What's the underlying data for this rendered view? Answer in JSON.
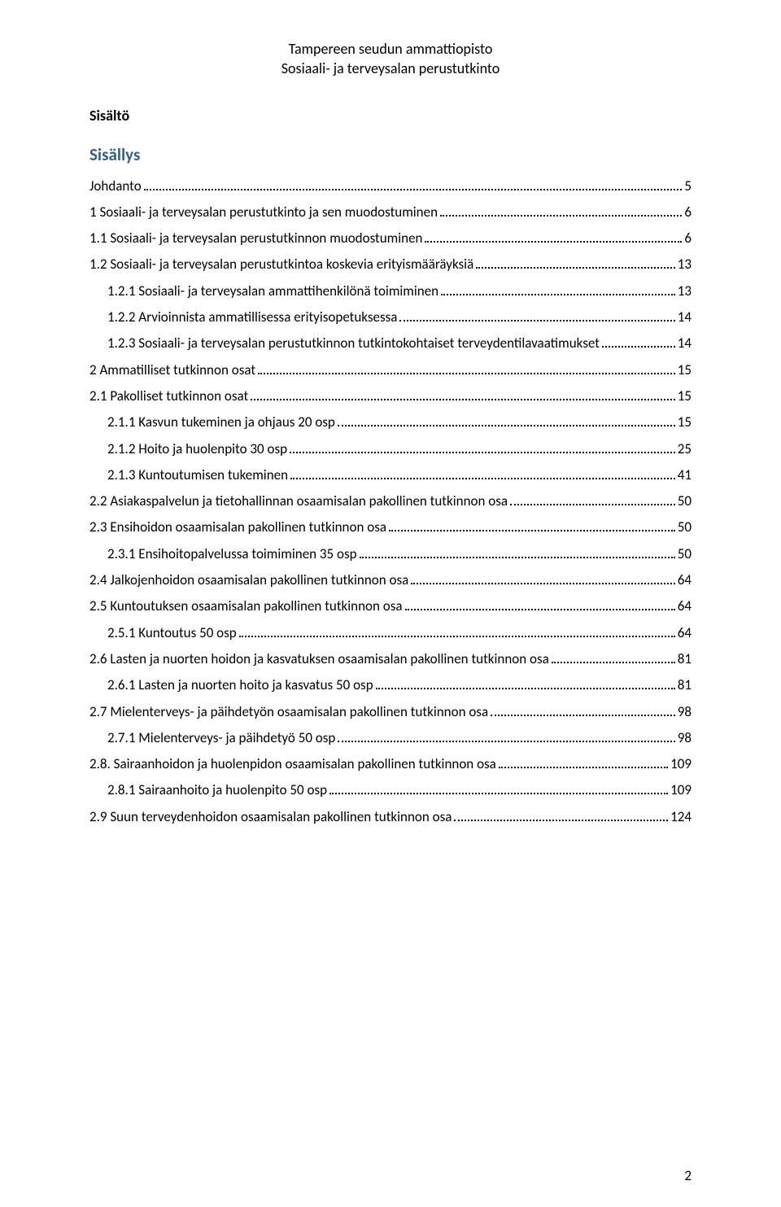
{
  "header": {
    "line1": "Tampereen seudun ammattiopisto",
    "line2": "Sosiaali- ja terveysalan perustutkinto"
  },
  "labels": {
    "sisalto": "Sisältö",
    "sisallys": "Sisällys"
  },
  "toc": [
    {
      "label": "Johdanto",
      "page": "5",
      "indent": 0
    },
    {
      "label": "1 Sosiaali- ja terveysalan perustutkinto ja sen muodostuminen",
      "page": "6",
      "indent": 0
    },
    {
      "label": "1.1    Sosiaali- ja terveysalan perustutkinnon muodostuminen",
      "page": "6",
      "indent": 0
    },
    {
      "label": "1.2    Sosiaali- ja terveysalan perustutkintoa koskevia erityismääräyksiä",
      "page": "13",
      "indent": 0
    },
    {
      "label": "1.2.1     Sosiaali- ja terveysalan ammattihenkilönä toimiminen",
      "page": "13",
      "indent": 1
    },
    {
      "label": "1.2.2     Arvioinnista ammatillisessa erityisopetuksessa",
      "page": "14",
      "indent": 1
    },
    {
      "label": "1.2.3 Sosiaali- ja terveysalan perustutkinnon tutkintokohtaiset terveydentilavaatimukset",
      "page": "14",
      "indent": 1
    },
    {
      "label": "2 Ammatilliset tutkinnon osat",
      "page": "15",
      "indent": 0
    },
    {
      "label": "2.1 Pakolliset tutkinnon osat",
      "page": "15",
      "indent": 0
    },
    {
      "label": "2.1.1 Kasvun tukeminen ja ohjaus 20 osp",
      "page": "15",
      "indent": 1
    },
    {
      "label": "2.1.2 Hoito ja huolenpito 30 osp",
      "page": "25",
      "indent": 1
    },
    {
      "label": "2.1.3 Kuntoutumisen tukeminen",
      "page": "41",
      "indent": 1
    },
    {
      "label": "2.2 Asiakaspalvelun ja tietohallinnan osaamisalan pakollinen tutkinnon osa",
      "page": "50",
      "indent": 0
    },
    {
      "label": "2.3 Ensihoidon osaamisalan pakollinen tutkinnon osa",
      "page": "50",
      "indent": 0
    },
    {
      "label": "2.3.1 Ensihoitopalvelussa toimiminen 35 osp",
      "page": "50",
      "indent": 1
    },
    {
      "label": "2.4 Jalkojenhoidon osaamisalan pakollinen tutkinnon osa",
      "page": "64",
      "indent": 0
    },
    {
      "label": "2.5 Kuntoutuksen osaamisalan pakollinen tutkinnon osa",
      "page": "64",
      "indent": 0
    },
    {
      "label": "2.5.1 Kuntoutus 50 osp",
      "page": "64",
      "indent": 1
    },
    {
      "label": "2.6 Lasten ja nuorten hoidon ja kasvatuksen osaamisalan pakollinen tutkinnon osa",
      "page": "81",
      "indent": 0
    },
    {
      "label": "2.6.1 Lasten ja nuorten hoito ja kasvatus 50 osp",
      "page": "81",
      "indent": 1
    },
    {
      "label": "2.7 Mielenterveys- ja päihdetyön osaamisalan pakollinen tutkinnon osa",
      "page": "98",
      "indent": 0
    },
    {
      "label": "2.7.1 Mielenterveys- ja päihdetyö 50 osp",
      "page": "98",
      "indent": 1
    },
    {
      "label": "2.8. Sairaanhoidon ja huolenpidon osaamisalan pakollinen tutkinnon osa",
      "page": "109",
      "indent": 0
    },
    {
      "label": "2.8.1 Sairaanhoito ja huolenpito 50 osp",
      "page": "109",
      "indent": 1
    },
    {
      "label": "2.9 Suun terveydenhoidon osaamisalan pakollinen tutkinnon osa",
      "page": "124",
      "indent": 0
    }
  ],
  "footer": {
    "page_number": "2"
  }
}
